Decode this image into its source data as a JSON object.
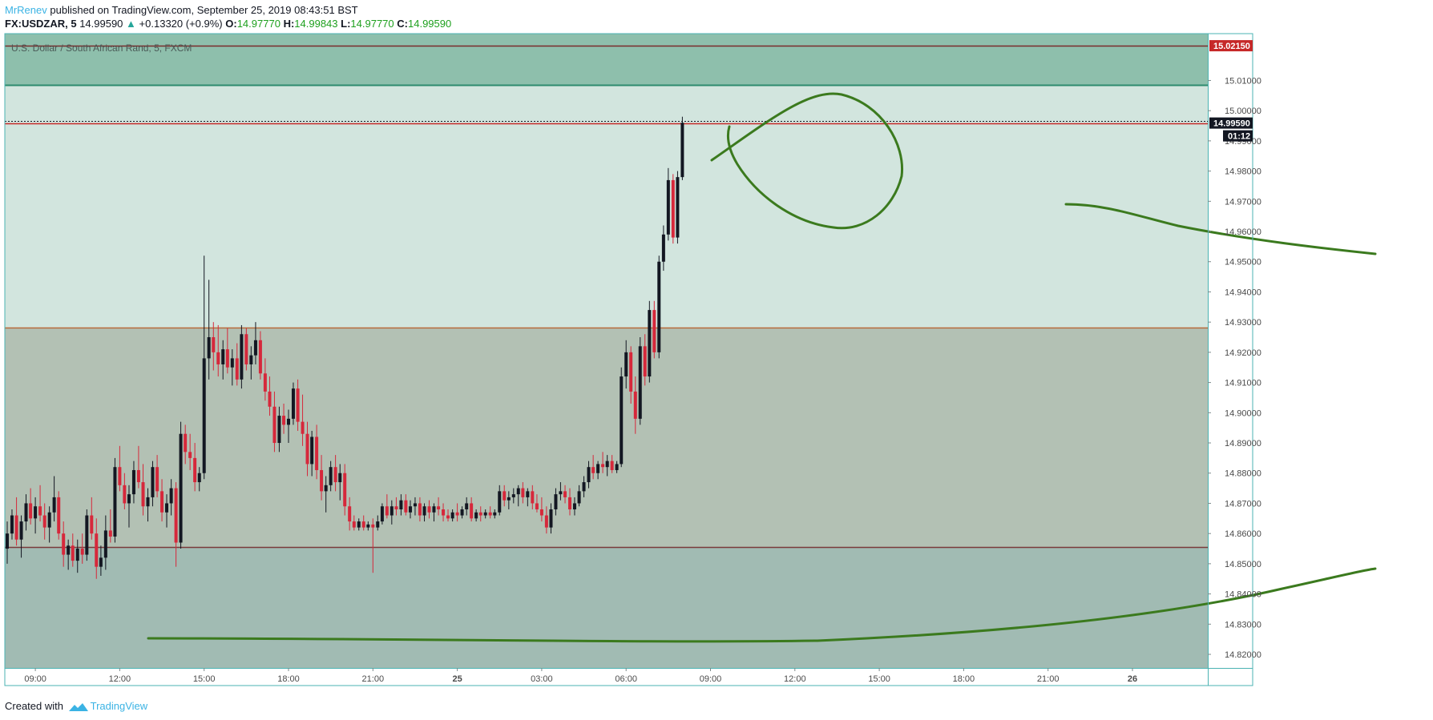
{
  "header": {
    "author": "MrRenev",
    "published": "published on TradingView.com, September 25, 2019 08:43:51 BST",
    "symbol": "FX:USDZAR, 5",
    "last": "14.99590",
    "change_arrow": "▲",
    "change": "+0.13320 (+0.9%)",
    "o_label": "O:",
    "o_value": "14.97770",
    "h_label": "H:",
    "h_value": "14.99843",
    "l_label": "L:",
    "l_value": "14.97770",
    "c_label": "C:",
    "c_value": "14.99590"
  },
  "footer": {
    "created_with": "Created with",
    "brand": "TradingView"
  },
  "colors": {
    "up_candle": "#131722",
    "down_candle": "#d6283b",
    "annotation": "#3b7a1e",
    "zone_top": "#8ebfac",
    "zone_upper": "#d2e5de",
    "zone_middle": "#b3c1b4",
    "zone_lower": "#a1bbb3",
    "price_tag_red": "#c62828"
  },
  "chart_data": {
    "type": "candlestick",
    "title": "U.S. Dollar / South African Rand, 5, FXCM",
    "ylim": [
      14.8155,
      15.0255
    ],
    "y_ticks": [
      "15.01000",
      "15.00000",
      "14.99000",
      "14.98000",
      "14.97000",
      "14.96000",
      "14.95000",
      "14.94000",
      "14.93000",
      "14.92000",
      "14.91000",
      "14.90000",
      "14.89000",
      "14.88000",
      "14.87000",
      "14.86000",
      "14.85000",
      "14.84000",
      "14.83000",
      "14.82000"
    ],
    "x_ticks": [
      {
        "label": "09:00",
        "hours": 1
      },
      {
        "label": "12:00",
        "hours": 4
      },
      {
        "label": "15:00",
        "hours": 7
      },
      {
        "label": "18:00",
        "hours": 10
      },
      {
        "label": "21:00",
        "hours": 13
      },
      {
        "label": "25",
        "hours": 16
      },
      {
        "label": "03:00",
        "hours": 19
      },
      {
        "label": "06:00",
        "hours": 22
      },
      {
        "label": "09:00",
        "hours": 25
      },
      {
        "label": "12:00",
        "hours": 28
      },
      {
        "label": "15:00",
        "hours": 31
      },
      {
        "label": "18:00",
        "hours": 34
      },
      {
        "label": "21:00",
        "hours": 37
      },
      {
        "label": "26",
        "hours": 40
      }
    ],
    "price_tags": [
      {
        "value": 15.0215,
        "text": "15.02150",
        "style": "red"
      },
      {
        "value": 14.9959,
        "text": "14.99590",
        "style": "dark"
      },
      {
        "text": "01:12",
        "style": "dark"
      }
    ],
    "zones": [
      {
        "from": 15.0085,
        "to": 15.0255,
        "name": "top"
      },
      {
        "from": 14.9282,
        "to": 15.0085,
        "name": "upper"
      },
      {
        "from": 14.8555,
        "to": 14.9282,
        "name": "middle"
      },
      {
        "from": 14.8155,
        "to": 14.8555,
        "name": "lower"
      }
    ],
    "horizontal_lines": [
      {
        "value": 15.0215,
        "color": "#7a2b2b"
      },
      {
        "value": 15.0085,
        "color": "#2e8b6e"
      },
      {
        "value": 14.9959,
        "color": "#c62828"
      },
      {
        "value": 14.9282,
        "color": "#b86a3a"
      },
      {
        "value": 14.8555,
        "color": "#7a3b3b"
      }
    ],
    "ohlc_key": "[hours from first bar, open, high, low, close]",
    "candles": [
      [
        0.0,
        14.855,
        14.864,
        14.85,
        14.86
      ],
      [
        0.17,
        14.86,
        14.868,
        14.858,
        14.866
      ],
      [
        0.33,
        14.866,
        14.872,
        14.856,
        14.858
      ],
      [
        0.5,
        14.858,
        14.866,
        14.852,
        14.864
      ],
      [
        0.67,
        14.864,
        14.873,
        14.861,
        14.87
      ],
      [
        0.83,
        14.87,
        14.875,
        14.863,
        14.865
      ],
      [
        1.0,
        14.865,
        14.872,
        14.86,
        14.869
      ],
      [
        1.17,
        14.869,
        14.876,
        14.864,
        14.866
      ],
      [
        1.33,
        14.866,
        14.87,
        14.858,
        14.862
      ],
      [
        1.5,
        14.862,
        14.869,
        14.857,
        14.867
      ],
      [
        1.67,
        14.867,
        14.879,
        14.864,
        14.872
      ],
      [
        1.83,
        14.872,
        14.874,
        14.858,
        14.86
      ],
      [
        2.0,
        14.86,
        14.864,
        14.849,
        14.853
      ],
      [
        2.17,
        14.853,
        14.858,
        14.848,
        14.856
      ],
      [
        2.33,
        14.856,
        14.86,
        14.849,
        14.851
      ],
      [
        2.5,
        14.851,
        14.858,
        14.847,
        14.855
      ],
      [
        2.67,
        14.855,
        14.86,
        14.85,
        14.853
      ],
      [
        2.83,
        14.853,
        14.868,
        14.851,
        14.866
      ],
      [
        3.0,
        14.866,
        14.872,
        14.858,
        14.86
      ],
      [
        3.17,
        14.86,
        14.865,
        14.845,
        14.849
      ],
      [
        3.33,
        14.849,
        14.856,
        14.846,
        14.852
      ],
      [
        3.5,
        14.852,
        14.866,
        14.848,
        14.861
      ],
      [
        3.67,
        14.861,
        14.868,
        14.857,
        14.859
      ],
      [
        3.83,
        14.859,
        14.885,
        14.857,
        14.882
      ],
      [
        4.0,
        14.882,
        14.889,
        14.874,
        14.876
      ],
      [
        4.17,
        14.876,
        14.88,
        14.868,
        14.87
      ],
      [
        4.33,
        14.87,
        14.876,
        14.862,
        14.873
      ],
      [
        4.5,
        14.873,
        14.884,
        14.87,
        14.881
      ],
      [
        4.67,
        14.881,
        14.889,
        14.875,
        14.877
      ],
      [
        4.83,
        14.877,
        14.883,
        14.866,
        14.869
      ],
      [
        5.0,
        14.869,
        14.875,
        14.864,
        14.872
      ],
      [
        5.17,
        14.872,
        14.884,
        14.869,
        14.882
      ],
      [
        5.33,
        14.882,
        14.886,
        14.872,
        14.874
      ],
      [
        5.5,
        14.874,
        14.878,
        14.864,
        14.867
      ],
      [
        5.67,
        14.867,
        14.873,
        14.862,
        14.87
      ],
      [
        5.83,
        14.87,
        14.878,
        14.866,
        14.875
      ],
      [
        6.0,
        14.875,
        14.877,
        14.849,
        14.857
      ],
      [
        6.17,
        14.857,
        14.897,
        14.855,
        14.893
      ],
      [
        6.33,
        14.893,
        14.896,
        14.883,
        14.887
      ],
      [
        6.5,
        14.887,
        14.893,
        14.881,
        14.885
      ],
      [
        6.67,
        14.885,
        14.89,
        14.874,
        14.877
      ],
      [
        6.83,
        14.877,
        14.882,
        14.874,
        14.88
      ],
      [
        7.0,
        14.88,
        14.952,
        14.878,
        14.918
      ],
      [
        7.17,
        14.918,
        14.944,
        14.911,
        14.925
      ],
      [
        7.33,
        14.925,
        14.93,
        14.914,
        14.92
      ],
      [
        7.5,
        14.92,
        14.929,
        14.912,
        14.916
      ],
      [
        7.67,
        14.916,
        14.924,
        14.911,
        14.921
      ],
      [
        7.83,
        14.921,
        14.928,
        14.913,
        14.915
      ],
      [
        8.0,
        14.915,
        14.921,
        14.909,
        14.918
      ],
      [
        8.17,
        14.918,
        14.923,
        14.909,
        14.911
      ],
      [
        8.33,
        14.911,
        14.929,
        14.908,
        14.926
      ],
      [
        8.5,
        14.926,
        14.928,
        14.914,
        14.916
      ],
      [
        8.67,
        14.916,
        14.922,
        14.911,
        14.919
      ],
      [
        8.83,
        14.919,
        14.93,
        14.916,
        14.924
      ],
      [
        9.0,
        14.924,
        14.927,
        14.911,
        14.913
      ],
      [
        9.17,
        14.913,
        14.918,
        14.904,
        14.907
      ],
      [
        9.33,
        14.907,
        14.912,
        14.899,
        14.902
      ],
      [
        9.5,
        14.902,
        14.907,
        14.887,
        14.89
      ],
      [
        9.67,
        14.89,
        14.902,
        14.887,
        14.899
      ],
      [
        9.83,
        14.899,
        14.903,
        14.893,
        14.896
      ],
      [
        10.0,
        14.896,
        14.901,
        14.89,
        14.898
      ],
      [
        10.17,
        14.898,
        14.91,
        14.896,
        14.908
      ],
      [
        10.33,
        14.908,
        14.911,
        14.894,
        14.897
      ],
      [
        10.5,
        14.897,
        14.906,
        14.889,
        14.893
      ],
      [
        10.67,
        14.893,
        14.897,
        14.879,
        14.883
      ],
      [
        10.83,
        14.883,
        14.894,
        14.879,
        14.892
      ],
      [
        11.0,
        14.892,
        14.896,
        14.878,
        14.881
      ],
      [
        11.17,
        14.881,
        14.886,
        14.871,
        14.874
      ],
      [
        11.33,
        14.874,
        14.879,
        14.867,
        14.876
      ],
      [
        11.5,
        14.876,
        14.884,
        14.874,
        14.882
      ],
      [
        11.67,
        14.882,
        14.886,
        14.874,
        14.877
      ],
      [
        11.83,
        14.877,
        14.883,
        14.871,
        14.88
      ],
      [
        12.0,
        14.88,
        14.883,
        14.866,
        14.869
      ],
      [
        12.17,
        14.869,
        14.872,
        14.861,
        14.864
      ],
      [
        12.33,
        14.864,
        14.866,
        14.861,
        14.862
      ],
      [
        12.5,
        14.862,
        14.865,
        14.861,
        14.864
      ],
      [
        12.67,
        14.864,
        14.866,
        14.861,
        14.862
      ],
      [
        12.83,
        14.862,
        14.864,
        14.861,
        14.863
      ],
      [
        13.0,
        14.863,
        14.865,
        14.847,
        14.862
      ],
      [
        13.17,
        14.862,
        14.866,
        14.861,
        14.864
      ],
      [
        13.33,
        14.864,
        14.87,
        14.863,
        14.869
      ],
      [
        13.5,
        14.869,
        14.873,
        14.865,
        14.866
      ],
      [
        13.67,
        14.866,
        14.871,
        14.863,
        14.869
      ],
      [
        13.83,
        14.869,
        14.872,
        14.866,
        14.868
      ],
      [
        14.0,
        14.868,
        14.873,
        14.866,
        14.871
      ],
      [
        14.17,
        14.871,
        14.873,
        14.866,
        14.867
      ],
      [
        14.33,
        14.867,
        14.871,
        14.865,
        14.869
      ],
      [
        14.5,
        14.869,
        14.872,
        14.866,
        14.87
      ],
      [
        14.67,
        14.87,
        14.872,
        14.864,
        14.866
      ],
      [
        14.83,
        14.866,
        14.87,
        14.864,
        14.869
      ],
      [
        15.0,
        14.869,
        14.871,
        14.865,
        14.867
      ],
      [
        15.17,
        14.867,
        14.87,
        14.864,
        14.869
      ],
      [
        15.33,
        14.869,
        14.872,
        14.866,
        14.868
      ],
      [
        15.5,
        14.868,
        14.87,
        14.864,
        14.866
      ],
      [
        15.67,
        14.866,
        14.868,
        14.864,
        14.865
      ],
      [
        15.83,
        14.865,
        14.868,
        14.864,
        14.867
      ],
      [
        16.0,
        14.867,
        14.87,
        14.864,
        14.866
      ],
      [
        16.17,
        14.866,
        14.869,
        14.865,
        14.868
      ],
      [
        16.33,
        14.868,
        14.872,
        14.866,
        14.87
      ],
      [
        16.5,
        14.87,
        14.872,
        14.864,
        14.865
      ],
      [
        16.67,
        14.865,
        14.868,
        14.864,
        14.867
      ],
      [
        16.83,
        14.867,
        14.869,
        14.864,
        14.866
      ],
      [
        17.0,
        14.866,
        14.868,
        14.865,
        14.867
      ],
      [
        17.17,
        14.867,
        14.869,
        14.865,
        14.866
      ],
      [
        17.33,
        14.866,
        14.868,
        14.865,
        14.867
      ],
      [
        17.5,
        14.867,
        14.876,
        14.866,
        14.874
      ],
      [
        17.67,
        14.874,
        14.876,
        14.869,
        14.871
      ],
      [
        17.83,
        14.871,
        14.874,
        14.868,
        14.872
      ],
      [
        18.0,
        14.872,
        14.875,
        14.87,
        14.873
      ],
      [
        18.17,
        14.873,
        14.876,
        14.869,
        14.875
      ],
      [
        18.33,
        14.875,
        14.877,
        14.87,
        14.872
      ],
      [
        18.5,
        14.872,
        14.875,
        14.869,
        14.874
      ],
      [
        18.67,
        14.874,
        14.876,
        14.868,
        14.87
      ],
      [
        18.83,
        14.87,
        14.873,
        14.867,
        14.868
      ],
      [
        19.0,
        14.868,
        14.872,
        14.864,
        14.866
      ],
      [
        19.17,
        14.866,
        14.869,
        14.86,
        14.862
      ],
      [
        19.33,
        14.862,
        14.87,
        14.86,
        14.868
      ],
      [
        19.5,
        14.868,
        14.875,
        14.866,
        14.873
      ],
      [
        19.67,
        14.873,
        14.877,
        14.871,
        14.874
      ],
      [
        19.83,
        14.874,
        14.876,
        14.87,
        14.872
      ],
      [
        20.0,
        14.872,
        14.875,
        14.866,
        14.868
      ],
      [
        20.17,
        14.868,
        14.872,
        14.866,
        14.87
      ],
      [
        20.33,
        14.87,
        14.876,
        14.869,
        14.874
      ],
      [
        20.5,
        14.874,
        14.879,
        14.872,
        14.877
      ],
      [
        20.67,
        14.877,
        14.884,
        14.875,
        14.882
      ],
      [
        20.83,
        14.882,
        14.886,
        14.878,
        14.88
      ],
      [
        21.0,
        14.88,
        14.884,
        14.878,
        14.883
      ],
      [
        21.17,
        14.883,
        14.887,
        14.88,
        14.882
      ],
      [
        21.33,
        14.882,
        14.886,
        14.879,
        14.884
      ],
      [
        21.5,
        14.884,
        14.886,
        14.88,
        14.881
      ],
      [
        21.67,
        14.881,
        14.884,
        14.88,
        14.883
      ],
      [
        21.83,
        14.883,
        14.915,
        14.882,
        14.912
      ],
      [
        22.0,
        14.912,
        14.924,
        14.908,
        14.92
      ],
      [
        22.17,
        14.92,
        14.922,
        14.903,
        14.907
      ],
      [
        22.33,
        14.907,
        14.912,
        14.893,
        14.898
      ],
      [
        22.5,
        14.898,
        14.925,
        14.896,
        14.922
      ],
      [
        22.67,
        14.922,
        14.926,
        14.909,
        14.912
      ],
      [
        22.83,
        14.912,
        14.937,
        14.91,
        14.934
      ],
      [
        23.0,
        14.934,
        14.937,
        14.918,
        14.92
      ],
      [
        23.17,
        14.92,
        14.952,
        14.918,
        14.95
      ],
      [
        23.33,
        14.95,
        14.962,
        14.947,
        14.959
      ],
      [
        23.5,
        14.959,
        14.981,
        14.957,
        14.977
      ],
      [
        23.67,
        14.977,
        14.979,
        14.956,
        14.958
      ],
      [
        23.83,
        14.958,
        14.98,
        14.956,
        14.978
      ],
      [
        24.0,
        14.978,
        14.998,
        14.977,
        14.996
      ]
    ],
    "annotations": [
      {
        "type": "circle",
        "name": "ellipse-highlight"
      },
      {
        "type": "curve",
        "name": "projection-down"
      },
      {
        "type": "curve",
        "name": "projection-up"
      }
    ]
  }
}
